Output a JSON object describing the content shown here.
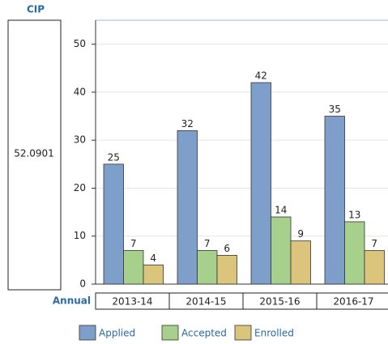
{
  "chart_data": {
    "type": "bar",
    "row_header": "CIP",
    "row_label": "52.0901",
    "xlabel": "Annual",
    "categories": [
      "2013-14",
      "2014-15",
      "2015-16",
      "2016-17"
    ],
    "series": [
      {
        "name": "Applied",
        "color": "#7f9fcb",
        "values": [
          25,
          32,
          42,
          35
        ]
      },
      {
        "name": "Accepted",
        "color": "#a8d08d",
        "values": [
          7,
          7,
          14,
          13
        ]
      },
      {
        "name": "Enrolled",
        "color": "#dbc57d",
        "values": [
          4,
          6,
          9,
          7
        ]
      }
    ],
    "ylim": [
      0,
      55
    ],
    "yticks": [
      0,
      10,
      20,
      30,
      40,
      50
    ],
    "grid": true
  }
}
